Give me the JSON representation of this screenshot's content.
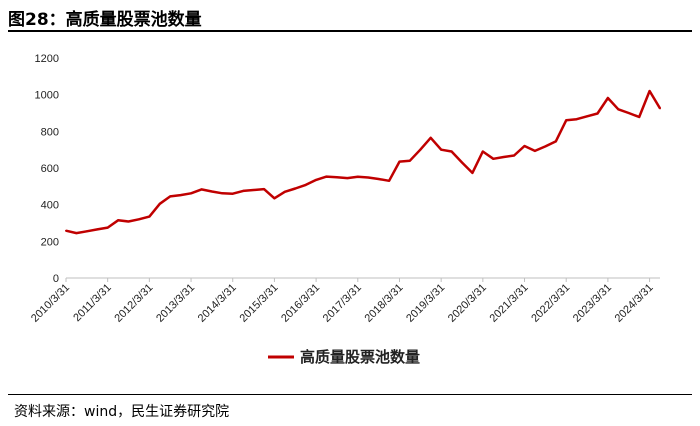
{
  "header": {
    "title": "图28：高质量股票池数量"
  },
  "footer": {
    "source": "资料来源：wind，民生证券研究院"
  },
  "chart_data": {
    "type": "line",
    "xlabel": "",
    "ylabel": "",
    "ylim": [
      0,
      1200
    ],
    "yticks": [
      0,
      200,
      400,
      600,
      800,
      1000,
      1200
    ],
    "xtick_labels": [
      "2010/3/31",
      "2011/3/31",
      "2012/3/31",
      "2013/3/31",
      "2014/3/31",
      "2015/3/31",
      "2016/3/31",
      "2017/3/31",
      "2018/3/31",
      "2019/3/31",
      "2020/3/31",
      "2021/3/31",
      "2022/3/31",
      "2023/3/31",
      "2024/3/31"
    ],
    "grid": false,
    "legend_position": "bottom-center",
    "series": [
      {
        "name": "高质量股票池数量",
        "color": "#C00000",
        "values": [
          258,
          245,
          255,
          265,
          275,
          315,
          308,
          320,
          335,
          405,
          445,
          452,
          462,
          483,
          472,
          462,
          460,
          475,
          480,
          485,
          435,
          470,
          488,
          508,
          535,
          553,
          550,
          545,
          552,
          548,
          540,
          530,
          635,
          640,
          700,
          765,
          700,
          690,
          630,
          573,
          690,
          650,
          660,
          668,
          720,
          693,
          718,
          745,
          860,
          866,
          882,
          897,
          982,
          920,
          900,
          878,
          1020,
          925
        ]
      }
    ]
  }
}
